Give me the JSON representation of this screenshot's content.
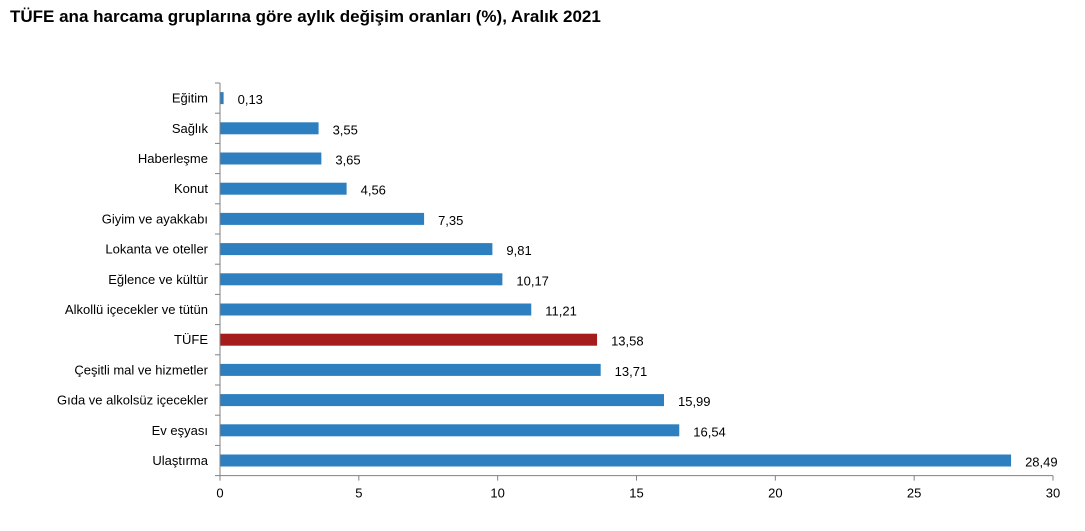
{
  "title": "TÜFE ana harcama gruplarına göre aylık değişim oranları (%), Aralık 2021",
  "chart_data": {
    "type": "bar",
    "orientation": "horizontal",
    "title": "TÜFE ana harcama gruplarına göre aylık değişim oranları (%), Aralık 2021",
    "categories": [
      "Eğitim",
      "Sağlık",
      "Haberleşme",
      "Konut",
      "Giyim ve ayakkabı",
      "Lokanta ve oteller",
      "Eğlence ve kültür",
      "Alkollü içecekler ve tütün",
      "TÜFE",
      "Çeşitli mal ve hizmetler",
      "Gıda ve alkolsüz içecekler",
      "Ev eşyası",
      "Ulaştırma"
    ],
    "values": [
      0.13,
      3.55,
      3.65,
      4.56,
      7.35,
      9.81,
      10.17,
      11.21,
      13.58,
      13.71,
      15.99,
      16.54,
      28.49
    ],
    "value_labels": [
      "0,13",
      "3,55",
      "3,65",
      "4,56",
      "7,35",
      "9,81",
      "10,17",
      "11,21",
      "13,58",
      "13,71",
      "15,99",
      "16,54",
      "28,49"
    ],
    "highlight_category": "TÜFE",
    "colors": {
      "bar": "#2e7fc0",
      "highlight": "#a51c1c",
      "axis": "#808080"
    },
    "xlim": [
      0,
      30
    ],
    "xticks": [
      0,
      5,
      10,
      15,
      20,
      25,
      30
    ],
    "xtick_labels": [
      "0",
      "5",
      "10",
      "15",
      "20",
      "25",
      "30"
    ],
    "grid": false,
    "legend": "none"
  }
}
